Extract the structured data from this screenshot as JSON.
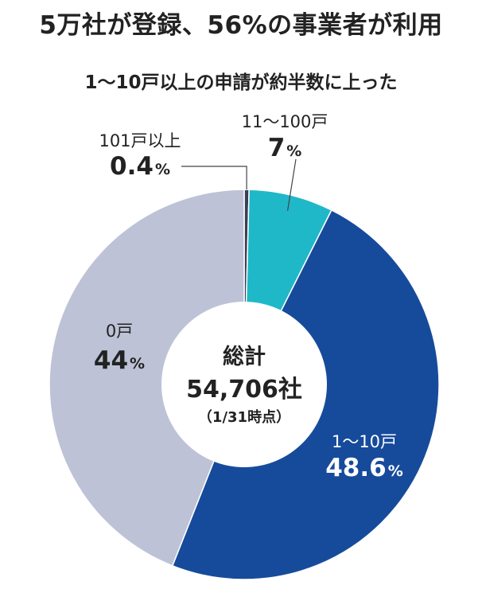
{
  "title": "5万社が登録、56%の事業者が利用",
  "subtitle": "1～10戸以上の申請が約半数に上った",
  "chart_data": {
    "type": "pie",
    "title": "5万社が登録、56%の事業者が利用",
    "subtitle": "1～10戸以上の申請が約半数に上った",
    "slices": [
      {
        "label": "101戸以上",
        "value": 0.4,
        "value_label": "0.4",
        "color": "#3a3f52"
      },
      {
        "label": "11～100戸",
        "value": 7,
        "value_label": "7",
        "color": "#1fb8c9"
      },
      {
        "label": "1～10戸",
        "value": 48.6,
        "value_label": "48.6",
        "color": "#164b9c"
      },
      {
        "label": "0戸",
        "value": 44,
        "value_label": "44",
        "color": "#bdc2d6"
      }
    ],
    "unit": "%",
    "center": {
      "title": "総計",
      "total": "54,706社",
      "note": "（1/31時点）"
    }
  }
}
